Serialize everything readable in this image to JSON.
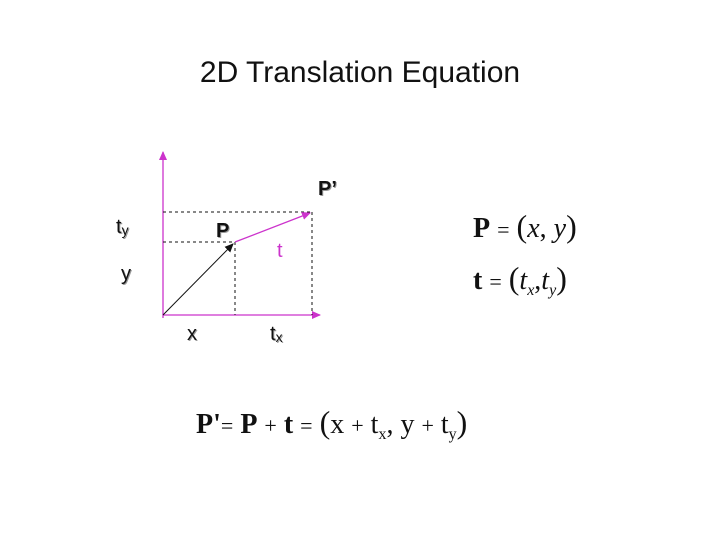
{
  "slide": {
    "title": "2D Translation Equation"
  },
  "diagram": {
    "label_P_prime": "P’",
    "label_P": "P",
    "label_t": "t",
    "label_ty_base": "t",
    "label_ty_sub": "y",
    "label_y": "y",
    "label_x": "x",
    "label_tx_base": "t",
    "label_tx_sub": "x"
  },
  "equations": {
    "point_def": {
      "lhs": "P",
      "eq": "=",
      "open": "(",
      "x": "x",
      "comma": ",",
      "y": "y",
      "close": ")"
    },
    "vector_def": {
      "lhs": "t",
      "eq": "=",
      "open": "(",
      "tx_base": "t",
      "tx_sub": "x",
      "comma": ",",
      "ty_base": "t",
      "ty_sub": "y",
      "close": ")"
    },
    "result": {
      "lhs": "P'",
      "eq1": "=",
      "p": "P",
      "plus": "+",
      "t": "t",
      "eq2": "=",
      "open": "(",
      "x": "x",
      "plus1": "+",
      "tx_base": "t",
      "tx_sub": "x",
      "comma": ",",
      "y": "y",
      "plus2": "+",
      "ty_base": "t",
      "ty_sub": "y",
      "close": ")"
    }
  },
  "colors": {
    "axis": "#cc33cc",
    "vector_t": "#cc33cc",
    "vector_p": "#111111",
    "dashed": "#111111"
  }
}
